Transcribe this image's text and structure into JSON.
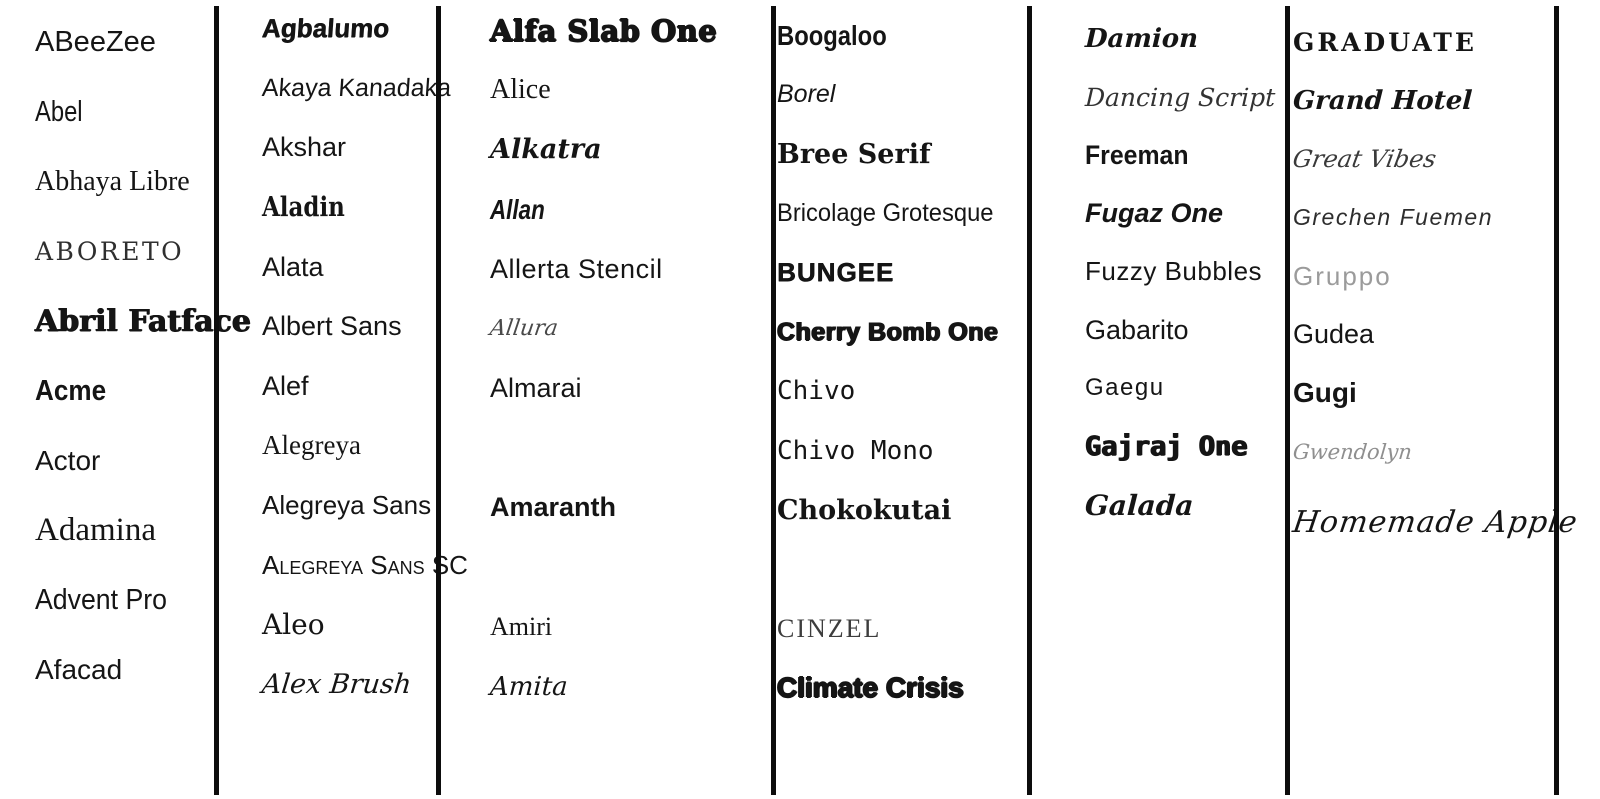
{
  "colors": {
    "text": "#151515",
    "muted": "#9b9b9b",
    "divider": "#0d0d0d",
    "background": "#ffffff"
  },
  "columns": [
    {
      "items": [
        {
          "label": "ABeeZee",
          "style": "abeezee"
        },
        {
          "label": "Abel",
          "style": "abel"
        },
        {
          "label": "Abhaya Libre",
          "style": "abhaya-libre"
        },
        {
          "label": "ABORETO",
          "style": "aboreto"
        },
        {
          "label": "Abril Fatface",
          "style": "abril-fatface"
        },
        {
          "label": "Acme",
          "style": "acme"
        },
        {
          "label": "Actor",
          "style": "actor"
        },
        {
          "label": "Adamina",
          "style": "adamina"
        },
        {
          "label": "Advent Pro",
          "style": "advent-pro"
        },
        {
          "label": "Afacad",
          "style": "afacad"
        }
      ]
    },
    {
      "items": [
        {
          "label": "Agbalumo",
          "style": "agbalumo"
        },
        {
          "label": "Akaya Kanadaka",
          "style": "akaya-kanadaka"
        },
        {
          "label": "Akshar",
          "style": "akshar"
        },
        {
          "label": "Aladin",
          "style": "aladin"
        },
        {
          "label": "Alata",
          "style": "alata"
        },
        {
          "label": "Albert Sans",
          "style": "albert-sans"
        },
        {
          "label": "Alef",
          "style": "alef"
        },
        {
          "label": "Alegreya",
          "style": "alegreya"
        },
        {
          "label": "Alegreya Sans",
          "style": "alegreya-sans"
        },
        {
          "label": "Alegreya Sans SC",
          "style": "alegreya-sans-sc"
        },
        {
          "label": "Aleo",
          "style": "aleo"
        },
        {
          "label": "Alex Brush",
          "style": "alex-brush"
        }
      ]
    },
    {
      "items": [
        {
          "label": "Alfa Slab One",
          "style": "alfa-slab-one"
        },
        {
          "label": "Alice",
          "style": "alice"
        },
        {
          "label": "Alkatra",
          "style": "alkatra"
        },
        {
          "label": "Allan",
          "style": "allan"
        },
        {
          "label": "Allerta Stencil",
          "style": "allerta-stencil"
        },
        {
          "label": "Allura",
          "style": "allura"
        },
        {
          "label": "Almarai",
          "style": "almarai"
        },
        {
          "label": "",
          "style": "blank"
        },
        {
          "label": "Amaranth",
          "style": "amaranth"
        },
        {
          "label": "",
          "style": "blank"
        },
        {
          "label": "Amiri",
          "style": "amiri"
        },
        {
          "label": "Amita",
          "style": "amita"
        }
      ]
    },
    {
      "items": [
        {
          "label": "Boogaloo",
          "style": "boogaloo"
        },
        {
          "label": "Borel",
          "style": "borel"
        },
        {
          "label": "Bree Serif",
          "style": "bree-serif"
        },
        {
          "label": "Bricolage Grotesque",
          "style": "bricolage-grotesque"
        },
        {
          "label": "BUNGEE",
          "style": "bungee"
        },
        {
          "label": "Cherry Bomb One",
          "style": "cherry-bomb-one"
        },
        {
          "label": "Chivo",
          "style": "chivo"
        },
        {
          "label": "Chivo Mono",
          "style": "chivo-mono"
        },
        {
          "label": "Chokokutai",
          "style": "chokokutai"
        },
        {
          "label": "",
          "style": "blank"
        },
        {
          "label": "CINZEL",
          "style": "cinzel"
        },
        {
          "label": "Climate Crisis",
          "style": "climate-crisis"
        }
      ]
    },
    {
      "items": [
        {
          "label": "Damion",
          "style": "damion"
        },
        {
          "label": "Dancing Script",
          "style": "dancing-script"
        },
        {
          "label": "Freeman",
          "style": "freeman"
        },
        {
          "label": "Fugaz One",
          "style": "fugaz-one"
        },
        {
          "label": "Fuzzy Bubbles",
          "style": "fuzzy-bubbles"
        },
        {
          "label": "Gabarito",
          "style": "gabarito"
        },
        {
          "label": "Gaegu",
          "style": "gaegu"
        },
        {
          "label": "Gajraj One",
          "style": "gajraj-one"
        },
        {
          "label": "Galada",
          "style": "galada"
        }
      ]
    },
    {
      "items": [
        {
          "label": "GRADUATE",
          "style": "graduate"
        },
        {
          "label": "Grand Hotel",
          "style": "grand-hotel"
        },
        {
          "label": "Great Vibes",
          "style": "great-vibes"
        },
        {
          "label": "Grechen Fuemen",
          "style": "grechen-fuemen"
        },
        {
          "label": "Gruppo",
          "style": "gruppo"
        },
        {
          "label": "Gudea",
          "style": "gudea"
        },
        {
          "label": "Gugi",
          "style": "gugi"
        },
        {
          "label": "Gwendolyn",
          "style": "gwendolyn"
        },
        {
          "label": "Homemade Apple",
          "style": "homemade-apple"
        }
      ]
    }
  ]
}
